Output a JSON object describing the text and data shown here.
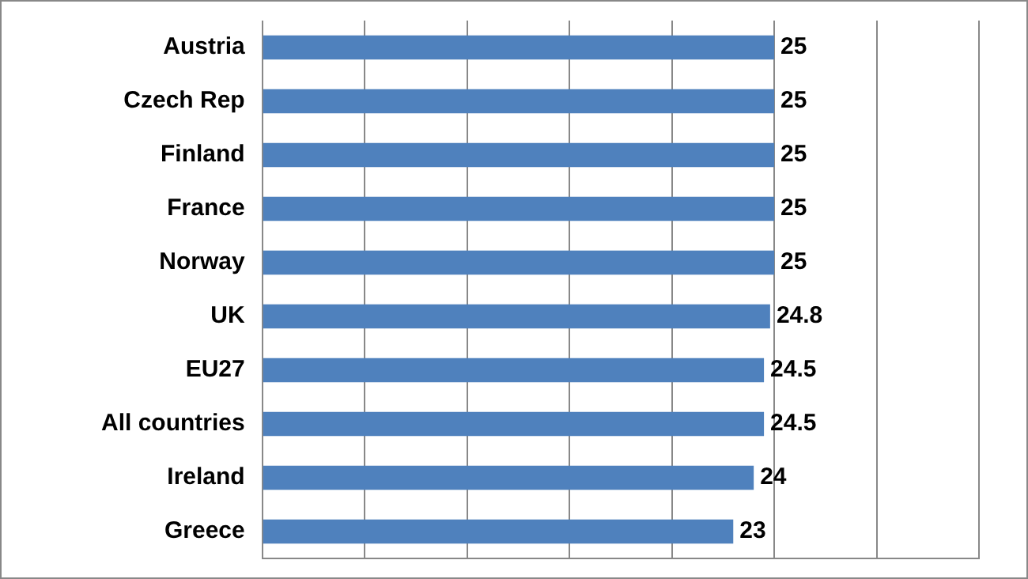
{
  "chart_data": {
    "type": "bar",
    "orientation": "horizontal",
    "categories": [
      "Austria",
      "Czech Rep",
      "Finland",
      "France",
      "Norway",
      "UK",
      "EU27",
      "All countries",
      "Ireland",
      "Greece"
    ],
    "values": [
      25,
      25,
      25,
      25,
      25,
      24.8,
      24.5,
      24.5,
      24,
      23
    ],
    "color": "#4f81bd",
    "data_labels": true,
    "xlim": [
      0,
      35
    ],
    "xticks": [
      {
        "value": 0,
        "label": null
      },
      {
        "value": 5,
        "label": null
      },
      {
        "value": 10,
        "label": null
      },
      {
        "value": 15,
        "label": null
      },
      {
        "value": 20,
        "label": null
      },
      {
        "value": 25,
        "label": null
      },
      {
        "value": 30,
        "label": null
      },
      {
        "value": 35,
        "label": null
      }
    ],
    "grid": "x",
    "tick_labels": "y"
  }
}
